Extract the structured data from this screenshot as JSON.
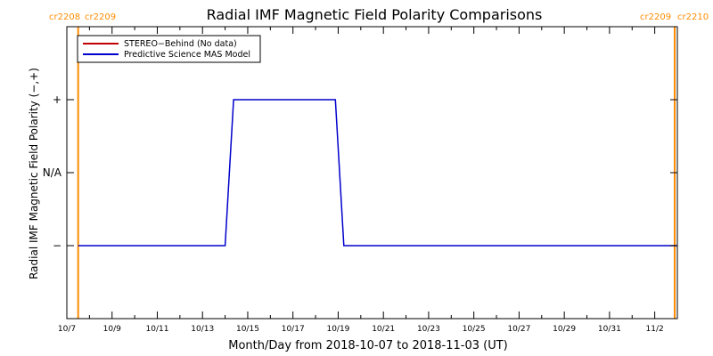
{
  "chart_data": {
    "type": "line",
    "title": "Radial IMF Magnetic Field Polarity Comparisons",
    "xlabel": "Month/Day from 2018-10-07 to 2018-11-03 (UT)",
    "ylabel": "Radial IMF Magnetic Field Polarity (−,+)",
    "xlim": [
      "2018-10-07",
      "2018-11-03"
    ],
    "x_ticks": [
      {
        "date": "2018-10-07",
        "label": "10/7"
      },
      {
        "date": "2018-10-09",
        "label": "10/9"
      },
      {
        "date": "2018-10-11",
        "label": "10/11"
      },
      {
        "date": "2018-10-13",
        "label": "10/13"
      },
      {
        "date": "2018-10-15",
        "label": "10/15"
      },
      {
        "date": "2018-10-17",
        "label": "10/17"
      },
      {
        "date": "2018-10-19",
        "label": "10/19"
      },
      {
        "date": "2018-10-21",
        "label": "10/21"
      },
      {
        "date": "2018-10-23",
        "label": "10/23"
      },
      {
        "date": "2018-10-25",
        "label": "10/25"
      },
      {
        "date": "2018-10-27",
        "label": "10/27"
      },
      {
        "date": "2018-10-29",
        "label": "10/29"
      },
      {
        "date": "2018-10-31",
        "label": "10/31"
      },
      {
        "date": "2018-11-02",
        "label": "11/2"
      }
    ],
    "y_ticks": [
      {
        "value": -1,
        "label": "−"
      },
      {
        "value": 0,
        "label": "N/A"
      },
      {
        "value": 1,
        "label": "+"
      }
    ],
    "ylim": [
      -2,
      2
    ],
    "legend": {
      "position": "top-left",
      "entries": [
        {
          "label": "STEREO−Behind (No data)",
          "color": "#c00000"
        },
        {
          "label": "Predictive Science MAS Model",
          "color": "#0000cc"
        }
      ]
    },
    "series": [
      {
        "name": "Predictive Science MAS Model",
        "color": "#0000cc",
        "points": [
          {
            "x": "2018-10-07 12:00",
            "y": -1
          },
          {
            "x": "2018-10-14 00:00",
            "y": -1
          },
          {
            "x": "2018-10-14 09:00",
            "y": 1
          },
          {
            "x": "2018-10-18 21:00",
            "y": 1
          },
          {
            "x": "2018-10-19 06:00",
            "y": -1
          },
          {
            "x": "2018-11-03 00:00",
            "y": -1
          }
        ]
      }
    ],
    "carrington_markers": [
      {
        "x": "2018-10-07 12:00",
        "label_left": "cr2208",
        "label_right": "cr2209",
        "color": "#ff8c00"
      },
      {
        "x": "2018-11-03 00:00",
        "label_left": "cr2209",
        "label_right": "cr2210",
        "color": "#ff8c00"
      }
    ]
  }
}
